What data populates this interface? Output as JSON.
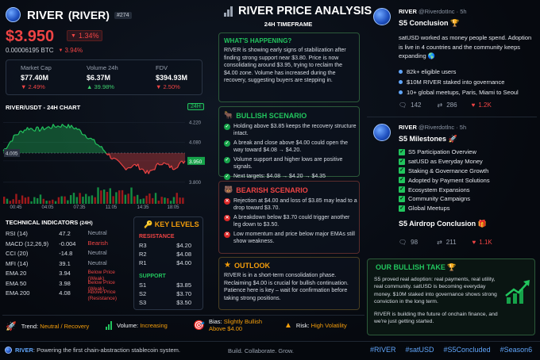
{
  "header": {
    "name": "RIVER",
    "ticker": "(RIVER)",
    "rank": "#274",
    "price": "$3.950",
    "change": "1.34%",
    "btc_price": "0.00006195 BTC",
    "btc_change": "3.94%"
  },
  "stats": [
    {
      "label": "Market Cap",
      "value": "$77.40M",
      "change": "2.49%",
      "dir": "down"
    },
    {
      "label": "Volume 24h",
      "value": "$6.37M",
      "change": "39.98%",
      "dir": "up"
    },
    {
      "label": "FDV",
      "value": "$394.93M",
      "change": "2.50%",
      "dir": "down"
    }
  ],
  "chart": {
    "title": "RIVER/USDT - 24H CHART",
    "timeframe": "24H",
    "price_marker": "3.950",
    "ref_marker": "4.005"
  },
  "chart_data": {
    "type": "line",
    "x": [
      "00:00",
      "02:30",
      "04:00",
      "05:30",
      "07:35",
      "09:00",
      "10:30",
      "11:05",
      "12:30",
      "14:35",
      "16:00",
      "18:00",
      "19:30",
      "21:00",
      "22:30",
      "24:00"
    ],
    "y": [
      4.02,
      4.13,
      4.18,
      4.17,
      4.19,
      4.2,
      4.18,
      4.12,
      4.05,
      3.97,
      3.9,
      3.92,
      3.86,
      3.94,
      3.9,
      3.95
    ],
    "ylim": [
      3.76,
      4.25
    ],
    "yticks": [
      "4.220",
      "4.080",
      "3.950",
      "3.800"
    ],
    "xticks": [
      "00:45",
      "04:05",
      "07:35",
      "11:05",
      "14:35",
      "18:05"
    ]
  },
  "indicators": {
    "title": "TECHNICAL INDICATORS",
    "period": "(24H)",
    "rows": [
      {
        "name": "RSI (14)",
        "value": "47.2",
        "signal": "Neutral",
        "color": "#9aa3b1"
      },
      {
        "name": "MACD (12,26,9)",
        "value": "-0.004",
        "signal": "Bearish",
        "color": "#ef4444"
      },
      {
        "name": "CCI (20)",
        "value": "-14.8",
        "signal": "Neutral",
        "color": "#9aa3b1"
      },
      {
        "name": "MFI (14)",
        "value": "39.1",
        "signal": "Neutral",
        "color": "#9aa3b1"
      },
      {
        "name": "EMA 20",
        "value": "3.94",
        "signal": "Below Price (Weak)",
        "color": "#ef4444"
      },
      {
        "name": "EMA 50",
        "value": "3.98",
        "signal": "Below Price (Weak)",
        "color": "#ef4444"
      },
      {
        "name": "EMA 200",
        "value": "4.08",
        "signal": "Above Price (Resistance)",
        "color": "#ef4444"
      }
    ]
  },
  "levels": {
    "title": "KEY LEVELS",
    "resistance_label": "RESISTANCE",
    "support_label": "SUPPORT",
    "resistance": [
      {
        "k": "R3",
        "v": "$4.20"
      },
      {
        "k": "R2",
        "v": "$4.08"
      },
      {
        "k": "R1",
        "v": "$4.00"
      }
    ],
    "support": [
      {
        "k": "S1",
        "v": "$3.85"
      },
      {
        "k": "S2",
        "v": "$3.70"
      },
      {
        "k": "S3",
        "v": "$3.50"
      }
    ]
  },
  "bottombar": {
    "trend_label": "Trend:",
    "trend": "Neutral / Recovery",
    "volume_label": "Volume:",
    "volume": "Increasing",
    "bias_label": "Bias:",
    "bias": "Slightly Bullish Above $4.00",
    "risk_label": "Risk:",
    "risk": "High Volatility"
  },
  "analysis": {
    "title": "RIVER PRICE ANALYSIS",
    "subtitle": "24H TIMEFRAME",
    "happening_title": "WHAT'S HAPPENING?",
    "happening": "RIVER is showing early signs of stabilization after finding strong support near $3.80. Price is now consolidating around $3.95, trying to reclaim the $4.00 zone. Volume has increased during the recovery, suggesting buyers are stepping in.",
    "bull_title": "BULLISH SCENARIO",
    "bull": [
      "Holding above $3.85 keeps the recovery structure intact.",
      "A break and close above $4.00 could open the way toward $4.08 → $4.20.",
      "Volume support and higher lows are positive signals.",
      "Next targets: $4.08 → $4.20 → $4.35"
    ],
    "bear_title": "BEARISH SCENARIO",
    "bear": [
      "Rejection at $4.00 and loss of $3.85 may lead to a drop toward $3.70.",
      "A breakdown below $3.70 could trigger another leg down to $3.50.",
      "Low momentum and price below major EMAs still show weakness."
    ],
    "outlook_title": "OUTLOOK",
    "outlook": "RIVER is in a short-term consolidation phase. Reclaiming $4.00 is crucial for bullish continuation. Patience here is key – wait for confirmation before taking strong positions."
  },
  "tweet1": {
    "name": "RIVER",
    "handle": "@RiverdotInc · 5h",
    "title": "S5 Conclusion 🏆",
    "body": "satUSD worked as money people spend. Adoption is live in 4 countries and the community keeps expanding 🌎",
    "items": [
      "82k+ eligible users",
      "$10M RIVER staked into governance",
      "10+ global meetups, Paris, Miami to Seoul"
    ],
    "replies": "142",
    "retweets": "286",
    "likes": "1.2K"
  },
  "tweet2": {
    "name": "RIVER",
    "handle": "@Riverdotlnc · 5h",
    "title": "S5 Milestones 🚀",
    "items": [
      "S5 Participation Overview",
      "satUSD as Everyday Money",
      "Staking & Governance Growth",
      "Adopted by Payment Solutions",
      "Ecosystem Expansions",
      "Community Campaigns",
      "Global Meetups"
    ],
    "footer": "S5 Airdrop Conclusion 🎁",
    "replies": "98",
    "retweets": "211",
    "likes": "1.1K"
  },
  "take": {
    "title": "OUR BULLISH TAKE 🏆",
    "p1": "S5 proved real adoption: real payments, real utility, real community. satUSD is becoming everyday money. $10M staked into governance shows strong conviction in the long term.",
    "p2": "RIVER is building the future of onchain finance, and we're just getting started."
  },
  "footer": {
    "brand": "RIVER",
    "tagline": ": Powering the first chain-abstraction stablecoin system.",
    "motto": "Build. Collaborate. Grow.",
    "tags": [
      "#RIVER",
      "#satUSD",
      "#S5Concluded",
      "#Season6"
    ]
  }
}
